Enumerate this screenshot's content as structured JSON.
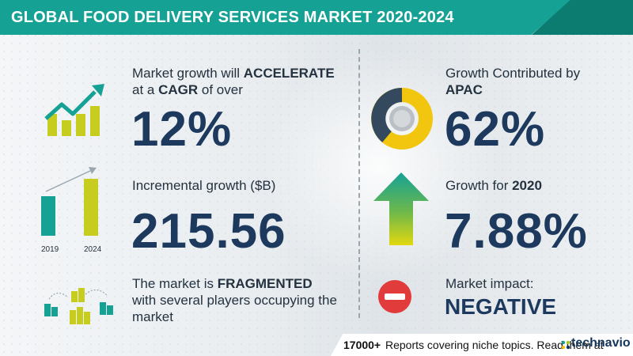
{
  "header": {
    "title": "GLOBAL FOOD DELIVERY SERVICES MARKET 2020-2024"
  },
  "left": {
    "cagr": {
      "line1_pre": "Market growth will ",
      "line1_bold": "ACCELERATE",
      "line2_pre": "at a ",
      "line2_bold": "CAGR",
      "line2_post": " of over",
      "value": "12%"
    },
    "incremental": {
      "label": "Incremental growth ($B)",
      "value": "215.56",
      "year_start": "2019",
      "year_end": "2024"
    },
    "fragmented": {
      "line1_pre": "The market is ",
      "line1_bold": "FRAGMENTED",
      "line2": "with several players occupying the",
      "line3": "market"
    }
  },
  "right": {
    "apac": {
      "line1": "Growth Contributed by",
      "line2_bold": "APAC",
      "value": "62%"
    },
    "growth2020": {
      "label_pre": "Growth for ",
      "label_bold": "2020",
      "value": "7.88%"
    },
    "impact": {
      "label": "Market impact:",
      "value": "NEGATIVE"
    }
  },
  "footer": {
    "count": "17000+",
    "text": "Reports covering niche topics. Read them at",
    "brand": "technavio"
  },
  "colors": {
    "teal": "#15a295",
    "navy": "#1d3a5e",
    "yellow": "#f2c60f",
    "green": "#a8c71d",
    "red": "#e23b3b"
  }
}
